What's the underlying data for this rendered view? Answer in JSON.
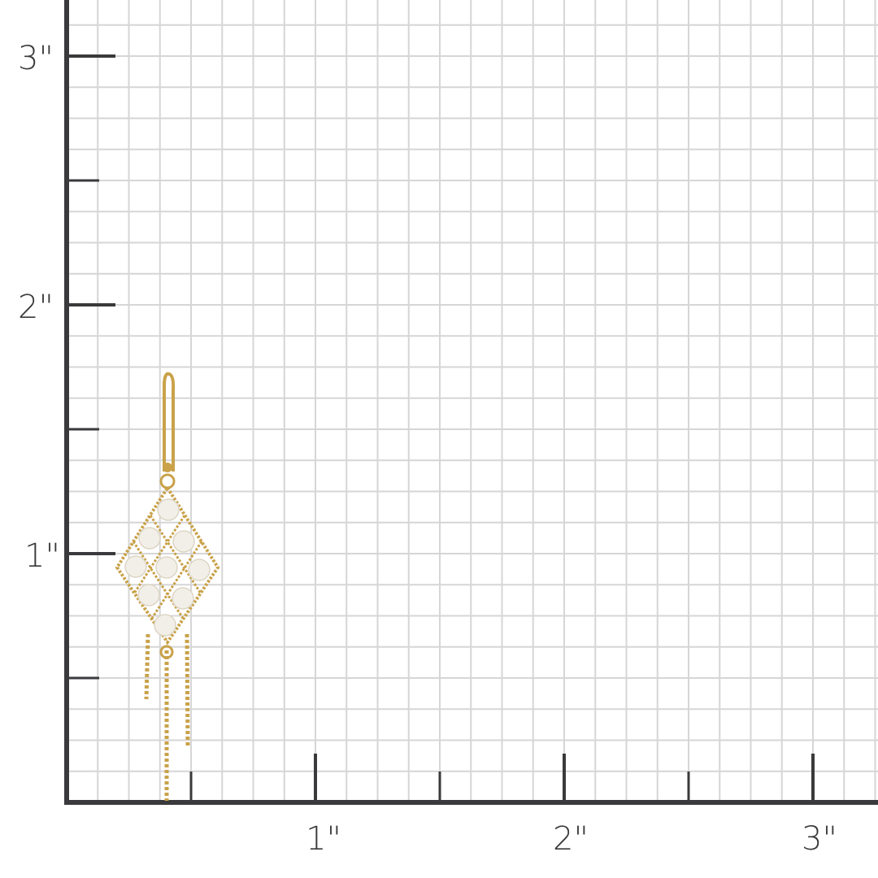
{
  "ruler": {
    "unit": "inch",
    "x_labels": [
      "1\"",
      "2\"",
      "3\""
    ],
    "y_labels": [
      "1\"",
      "2\"",
      "3\""
    ],
    "grid_subdivisions_per_inch": 8,
    "axis_color": "#3a3a3c",
    "grid_color": "#d6d6d6"
  },
  "product": {
    "type": "earring",
    "height_inches": 1.7,
    "metal_color": "#c9a24a",
    "pearl_color": "#f2efe8",
    "pearl_count": 9
  }
}
